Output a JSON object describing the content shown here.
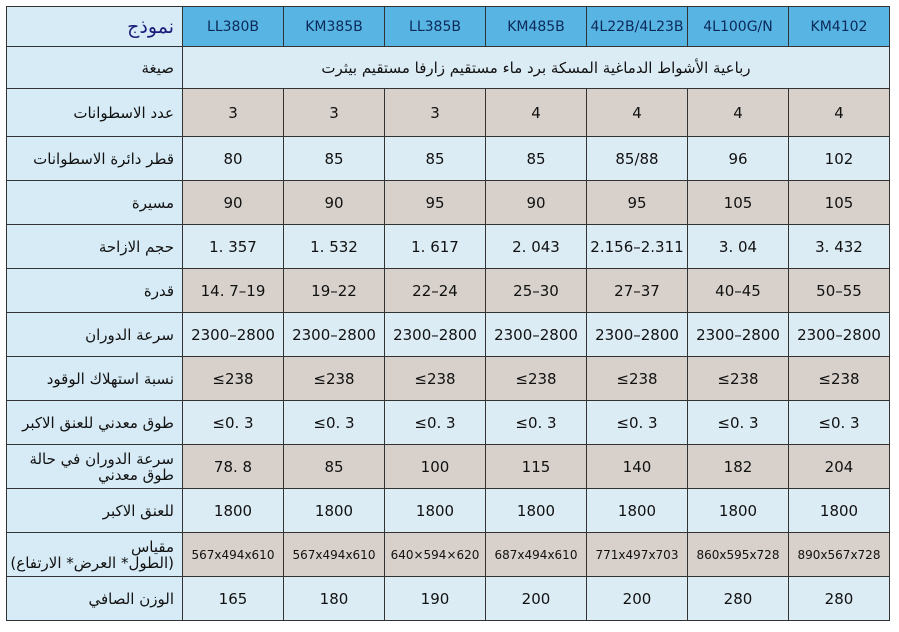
{
  "table": {
    "header": {
      "label": "نموذج",
      "models": [
        "LL380B",
        "KM385B",
        "LL385B",
        "KM485B",
        "4L22B/4L23B",
        "4L100G/N",
        "KM4102"
      ]
    },
    "formula": {
      "label": "صيغة",
      "value": "رباعية الأشواط الدماغية المسكة برد ماء مستقيم زارفا مستقيم بيثرت"
    },
    "rows": [
      {
        "label": [
          "عدد الاسطوانات"
        ],
        "values": [
          "3",
          "3",
          "3",
          "4",
          "4",
          "4",
          "4"
        ]
      },
      {
        "label": [
          "قطر دائرة الاسطوانات"
        ],
        "values": [
          "80",
          "85",
          "85",
          "85",
          "85/88",
          "96",
          "102"
        ]
      },
      {
        "label": [
          "مسيرة"
        ],
        "values": [
          "90",
          "90",
          "95",
          "90",
          "95",
          "105",
          "105"
        ]
      },
      {
        "label": [
          "حجم الازاحة"
        ],
        "values": [
          "1. 357",
          "1. 532",
          "1. 617",
          "2. 043",
          "2.156–2.311",
          "3. 04",
          "3. 432"
        ]
      },
      {
        "label": [
          "قدرة"
        ],
        "values": [
          "14. 7–19",
          "19–22",
          "22–24",
          "25–30",
          "27–37",
          "40–45",
          "50–55"
        ]
      },
      {
        "label": [
          "سرعة الدوران"
        ],
        "values": [
          "2300–2800",
          "2300–2800",
          "2300–2800",
          "2300–2800",
          "2300–2800",
          "2300–2800",
          "2300–2800"
        ]
      },
      {
        "label": [
          "نسبة استهلاك الوقود"
        ],
        "values": [
          "≤238",
          "≤238",
          "≤238",
          "≤238",
          "≤238",
          "≤238",
          "≤238"
        ]
      },
      {
        "label": [
          "طوق معدني للعنق الاكبر"
        ],
        "values": [
          "≤0. 3",
          "≤0. 3",
          "≤0. 3",
          "≤0. 3",
          "≤0. 3",
          "≤0. 3",
          "≤0. 3"
        ]
      },
      {
        "label": [
          "سرعة الدوران في حالة",
          "طوق معدني"
        ],
        "values": [
          "78. 8",
          "85",
          "100",
          "115",
          "140",
          "182",
          "204"
        ]
      },
      {
        "label": [
          "للعنق الاكبر"
        ],
        "values": [
          "1800",
          "1800",
          "1800",
          "1800",
          "1800",
          "1800",
          "1800"
        ]
      },
      {
        "label": [
          "مقياس",
          "(الطول* العرض* الارتفاع)"
        ],
        "values": [
          "567x494x610",
          "567x494x610",
          "640×594×620",
          "687x494x610",
          "771x497x703",
          "860x595x728",
          "890x567x728"
        ]
      },
      {
        "label": [
          "الوزن الصافي"
        ],
        "values": [
          "165",
          "180",
          "190",
          "200",
          "200",
          "280",
          "280"
        ]
      }
    ]
  }
}
